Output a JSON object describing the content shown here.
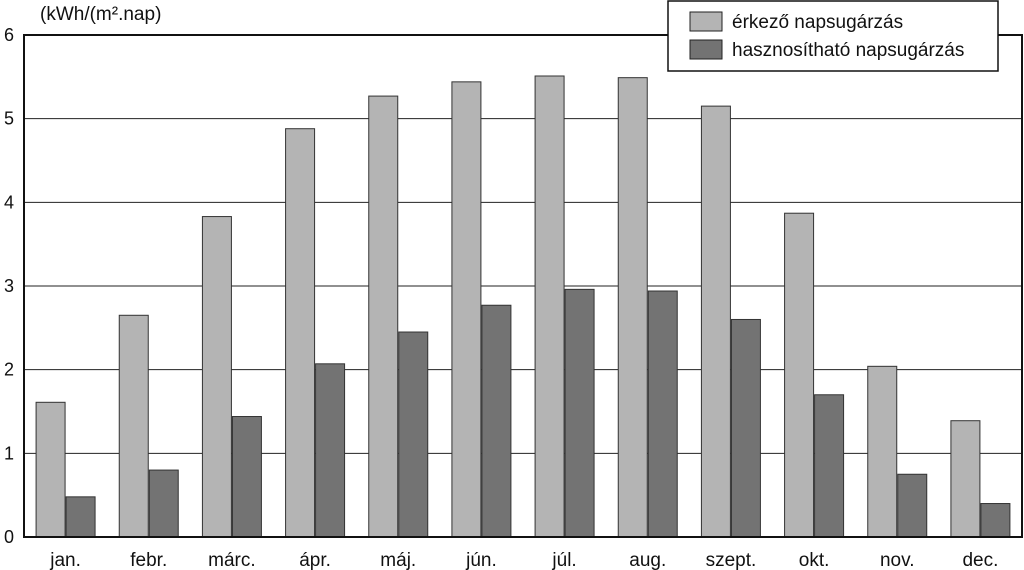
{
  "chart_data": {
    "type": "bar",
    "title": "",
    "ylabel": "(kWh/(m².nap)",
    "xlabel": "",
    "ylim": [
      0,
      6
    ],
    "yticks": [
      0,
      1,
      2,
      3,
      4,
      5,
      6
    ],
    "grid": true,
    "legend_position": "top-right",
    "categories": [
      "jan.",
      "febr.",
      "márc.",
      "ápr.",
      "máj.",
      "jún.",
      "júl.",
      "aug.",
      "szept.",
      "okt.",
      "nov.",
      "dec."
    ],
    "series": [
      {
        "name": "érkező napsugárzás",
        "color": "#b4b4b4",
        "values": [
          1.61,
          2.65,
          3.83,
          4.88,
          5.27,
          5.44,
          5.51,
          5.49,
          5.15,
          3.87,
          2.04,
          1.39
        ]
      },
      {
        "name": "hasznosítható napsugárzás",
        "color": "#737373",
        "values": [
          0.48,
          0.8,
          1.44,
          2.07,
          2.45,
          2.77,
          2.96,
          2.94,
          2.6,
          1.7,
          0.75,
          0.4
        ]
      }
    ]
  }
}
